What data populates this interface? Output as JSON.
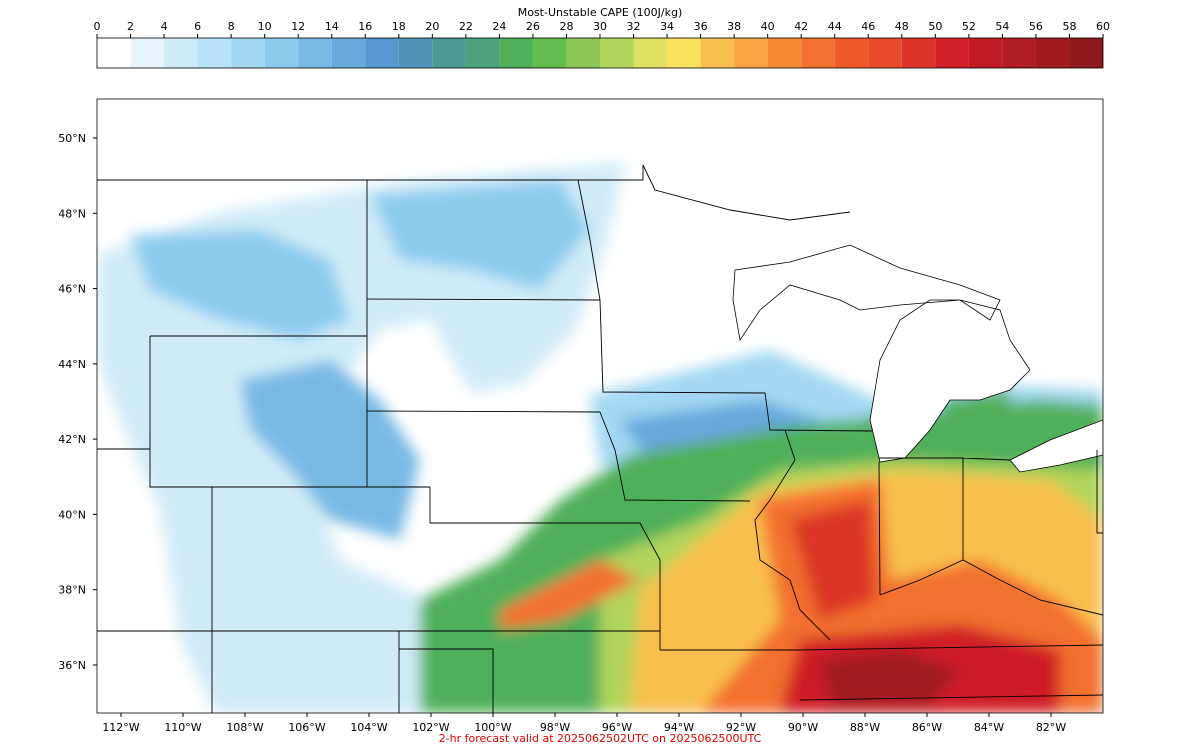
{
  "colorbar": {
    "title": "Most-Unstable CAPE (100J/kg)",
    "ticks": [
      0,
      2,
      4,
      6,
      8,
      10,
      12,
      14,
      16,
      18,
      20,
      22,
      24,
      26,
      28,
      30,
      32,
      34,
      36,
      38,
      40,
      42,
      44,
      46,
      48,
      50,
      52,
      54,
      56,
      58,
      60
    ],
    "colors": [
      "#ffffff",
      "#e8f4fc",
      "#d0ebf8",
      "#b8e2f6",
      "#a3d8f3",
      "#8ccbee",
      "#78b9e4",
      "#66a9dc",
      "#5598d2",
      "#4f94b8",
      "#4a9a98",
      "#4aa37a",
      "#4fb05a",
      "#63bd4d",
      "#8dc655",
      "#b1d45a",
      "#dde060",
      "#fbe05a",
      "#f8bf4e",
      "#f6a444",
      "#f58a36",
      "#f3702e",
      "#ef5a2a",
      "#e84a2a",
      "#dc3428",
      "#d01f26",
      "#c21d24",
      "#b01c22",
      "#a01a20",
      "#8f1a1e"
    ]
  },
  "map": {
    "lat_labels": [
      {
        "value": 50,
        "label": "50°N"
      },
      {
        "value": 48,
        "label": "48°N"
      },
      {
        "value": 46,
        "label": "46°N"
      },
      {
        "value": 44,
        "label": "44°N"
      },
      {
        "value": 42,
        "label": "42°N"
      },
      {
        "value": 40,
        "label": "40°N"
      },
      {
        "value": 38,
        "label": "38°N"
      },
      {
        "value": 36,
        "label": "36°N"
      }
    ],
    "lon_labels": [
      {
        "value": -112,
        "label": "112°W"
      },
      {
        "value": -110,
        "label": "110°W"
      },
      {
        "value": -108,
        "label": "108°W"
      },
      {
        "value": -106,
        "label": "106°W"
      },
      {
        "value": -104,
        "label": "104°W"
      },
      {
        "value": -102,
        "label": "102°W"
      },
      {
        "value": -100,
        "label": "100°W"
      },
      {
        "value": -98,
        "label": "98°W"
      },
      {
        "value": -96,
        "label": "96°W"
      },
      {
        "value": -94,
        "label": "94°W"
      },
      {
        "value": -92,
        "label": "92°W"
      },
      {
        "value": -90,
        "label": "90°W"
      },
      {
        "value": -88,
        "label": "88°W"
      },
      {
        "value": -86,
        "label": "86°W"
      },
      {
        "value": -84,
        "label": "84°W"
      },
      {
        "value": -82,
        "label": "82°W"
      }
    ]
  },
  "footer": "2-hr forecast valid at 2025062502UTC on 2025062500UTC"
}
